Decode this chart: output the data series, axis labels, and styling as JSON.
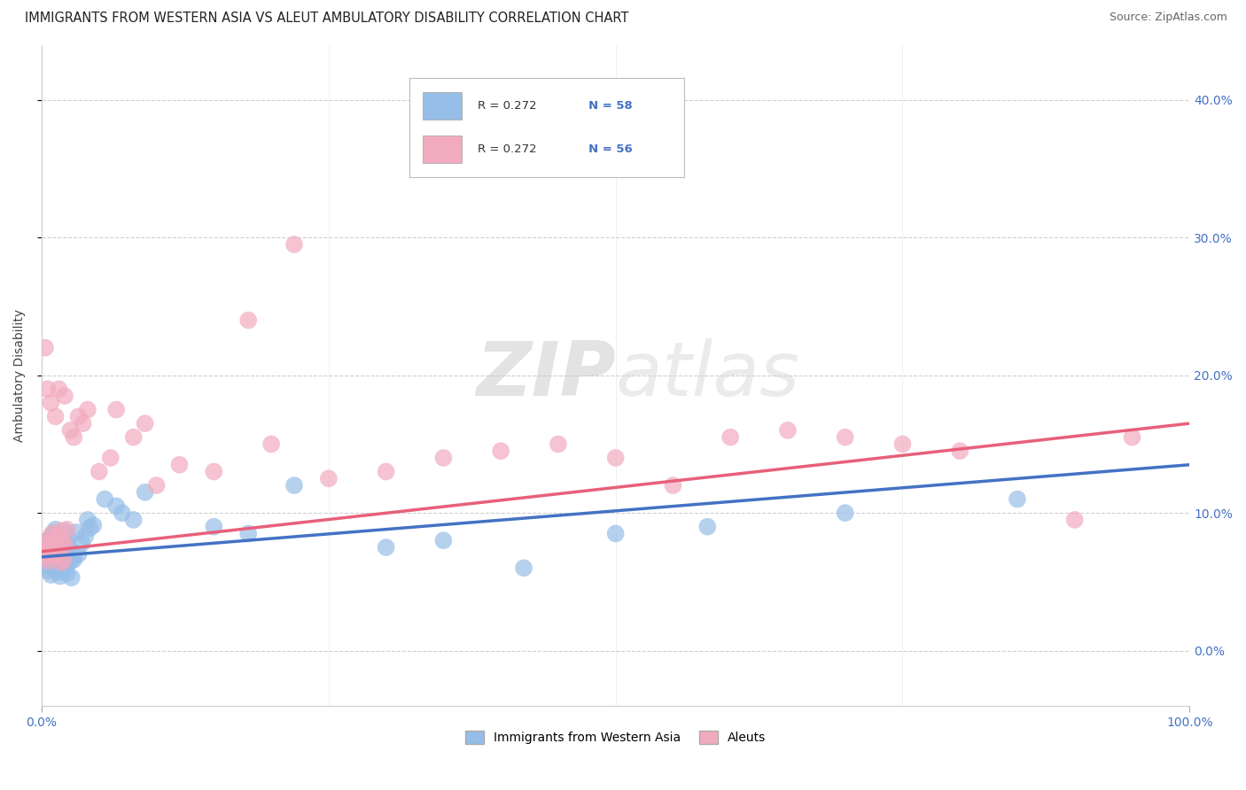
{
  "title": "IMMIGRANTS FROM WESTERN ASIA VS ALEUT AMBULATORY DISABILITY CORRELATION CHART",
  "source": "Source: ZipAtlas.com",
  "ylabel": "Ambulatory Disability",
  "xlim": [
    0.0,
    1.0
  ],
  "ylim": [
    -0.04,
    0.44
  ],
  "yticks": [
    0.0,
    0.1,
    0.2,
    0.3,
    0.4
  ],
  "xticks": [
    0.0,
    1.0
  ],
  "xtick_labels": [
    "0.0%",
    "100.0%"
  ],
  "blue_R": "0.272",
  "blue_N": "58",
  "pink_R": "0.272",
  "pink_N": "56",
  "legend_labels": [
    "Immigrants from Western Asia",
    "Aleuts"
  ],
  "blue_color": "#96BEE8",
  "pink_color": "#F2AABF",
  "blue_line_color": "#4472C4",
  "pink_line_color": "#E8607A",
  "watermark_zip": "ZIP",
  "watermark_atlas": "atlas",
  "grid_color": "#BBBBBB",
  "bg_color": "#FFFFFF",
  "title_fontsize": 10.5,
  "label_fontsize": 10,
  "tick_fontsize": 10,
  "blue_scatter_x": [
    0.003,
    0.004,
    0.005,
    0.006,
    0.007,
    0.008,
    0.009,
    0.01,
    0.011,
    0.012,
    0.013,
    0.014,
    0.015,
    0.016,
    0.017,
    0.018,
    0.019,
    0.02,
    0.021,
    0.022,
    0.023,
    0.025,
    0.027,
    0.03,
    0.032,
    0.035,
    0.038,
    0.04,
    0.042,
    0.045,
    0.005,
    0.006,
    0.008,
    0.01,
    0.012,
    0.014,
    0.016,
    0.018,
    0.02,
    0.022,
    0.024,
    0.026,
    0.028,
    0.055,
    0.065,
    0.07,
    0.08,
    0.09,
    0.15,
    0.18,
    0.22,
    0.3,
    0.35,
    0.42,
    0.5,
    0.58,
    0.7,
    0.85
  ],
  "blue_scatter_y": [
    0.07,
    0.075,
    0.08,
    0.072,
    0.068,
    0.082,
    0.078,
    0.085,
    0.065,
    0.088,
    0.071,
    0.076,
    0.069,
    0.083,
    0.073,
    0.066,
    0.079,
    0.087,
    0.064,
    0.077,
    0.081,
    0.074,
    0.067,
    0.086,
    0.07,
    0.078,
    0.083,
    0.095,
    0.089,
    0.091,
    0.062,
    0.058,
    0.055,
    0.06,
    0.063,
    0.057,
    0.054,
    0.061,
    0.059,
    0.056,
    0.064,
    0.053,
    0.066,
    0.11,
    0.105,
    0.1,
    0.095,
    0.115,
    0.09,
    0.085,
    0.12,
    0.075,
    0.08,
    0.06,
    0.085,
    0.09,
    0.1,
    0.11
  ],
  "pink_scatter_x": [
    0.002,
    0.003,
    0.004,
    0.005,
    0.006,
    0.007,
    0.008,
    0.009,
    0.01,
    0.011,
    0.012,
    0.013,
    0.014,
    0.015,
    0.016,
    0.017,
    0.018,
    0.019,
    0.02,
    0.022,
    0.025,
    0.028,
    0.032,
    0.036,
    0.04,
    0.05,
    0.06,
    0.065,
    0.08,
    0.09,
    0.1,
    0.12,
    0.15,
    0.18,
    0.2,
    0.22,
    0.25,
    0.3,
    0.35,
    0.4,
    0.45,
    0.5,
    0.55,
    0.6,
    0.65,
    0.7,
    0.75,
    0.8,
    0.9,
    0.95,
    0.003,
    0.005,
    0.008,
    0.012,
    0.015,
    0.02
  ],
  "pink_scatter_y": [
    0.075,
    0.068,
    0.072,
    0.08,
    0.065,
    0.078,
    0.07,
    0.085,
    0.074,
    0.069,
    0.082,
    0.076,
    0.071,
    0.083,
    0.087,
    0.064,
    0.079,
    0.066,
    0.077,
    0.088,
    0.16,
    0.155,
    0.17,
    0.165,
    0.175,
    0.13,
    0.14,
    0.175,
    0.155,
    0.165,
    0.12,
    0.135,
    0.13,
    0.24,
    0.15,
    0.295,
    0.125,
    0.13,
    0.14,
    0.145,
    0.15,
    0.14,
    0.12,
    0.155,
    0.16,
    0.155,
    0.15,
    0.145,
    0.095,
    0.155,
    0.22,
    0.19,
    0.18,
    0.17,
    0.19,
    0.185
  ],
  "blue_trend_x": [
    0.0,
    1.0
  ],
  "blue_trend_y_start": 0.068,
  "blue_trend_y_end": 0.135,
  "pink_trend_x": [
    0.0,
    1.0
  ],
  "pink_trend_y_start": 0.072,
  "pink_trend_y_end": 0.165
}
